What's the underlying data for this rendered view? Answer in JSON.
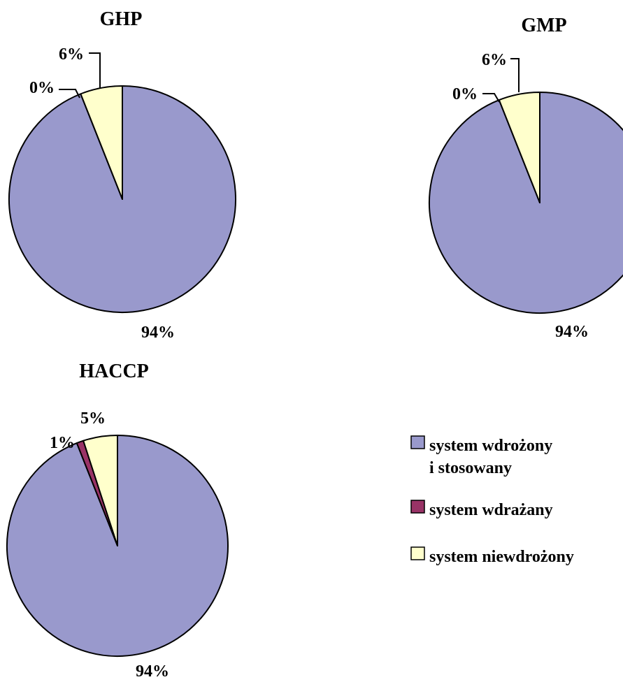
{
  "colors": {
    "system wdrożony i stosowany": "#9999cc",
    "system wdrażany": "#993366",
    "system niewdrożony": "#ffffcc"
  },
  "legend": {
    "items": [
      {
        "lines": [
          "system wdrożony",
          "i stosowany"
        ]
      },
      {
        "lines": [
          "system wdrażany"
        ]
      },
      {
        "lines": [
          "system niewdrożony"
        ]
      }
    ]
  },
  "chart_data": [
    {
      "type": "pie",
      "title": "GHP",
      "categories": [
        "system wdrożony i stosowany",
        "system wdrażany",
        "system niewdrożony"
      ],
      "values": [
        94,
        0,
        6
      ],
      "labels": [
        "94%",
        "0%",
        "6%"
      ]
    },
    {
      "type": "pie",
      "title": "GMP",
      "categories": [
        "system wdrożony i stosowany",
        "system wdrażany",
        "system niewdrożony"
      ],
      "values": [
        94,
        0,
        6
      ],
      "labels": [
        "94%",
        "0%",
        "6%"
      ]
    },
    {
      "type": "pie",
      "title": "HACCP",
      "categories": [
        "system wdrożony i stosowany",
        "system wdrażany",
        "system niewdrożony"
      ],
      "values": [
        94,
        1,
        5
      ],
      "labels": [
        "94%",
        "1%",
        "5%"
      ]
    }
  ]
}
